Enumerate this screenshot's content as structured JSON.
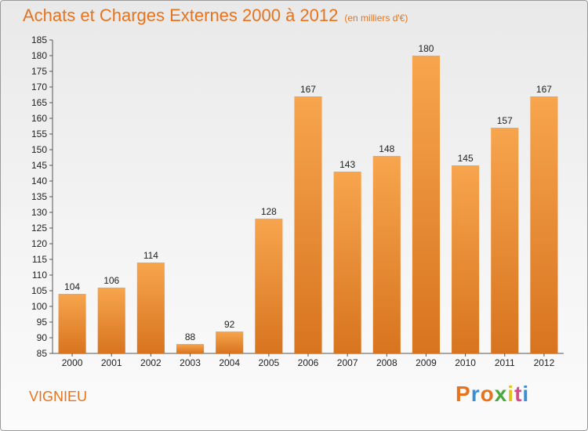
{
  "header": {
    "title": "Achats et Charges Externes 2000 à 2012",
    "subtitle": "(en milliers d'€)"
  },
  "footer": {
    "commune": "VIGNIEU",
    "brand": "Proxiti"
  },
  "colors": {
    "accent": "#e8731c",
    "bar_top": "#f7a54e",
    "bar_bottom": "#d8741f",
    "logo_letters": [
      "#e8731c",
      "#3a8ed6",
      "#e8731c",
      "#4aa83c",
      "#e4c21b",
      "#d84a8a",
      "#3a8ed6"
    ]
  },
  "chart_data": {
    "type": "bar",
    "title": "Achats et Charges Externes 2000 à 2012",
    "subtitle": "(en milliers d'€)",
    "categories": [
      "2000",
      "2001",
      "2002",
      "2003",
      "2004",
      "2005",
      "2006",
      "2007",
      "2008",
      "2009",
      "2010",
      "2011",
      "2012"
    ],
    "values": [
      104,
      106,
      114,
      88,
      92,
      128,
      167,
      143,
      148,
      180,
      145,
      157,
      167
    ],
    "ylim": [
      85,
      185
    ],
    "yticks": [
      85,
      90,
      95,
      100,
      105,
      110,
      115,
      120,
      125,
      130,
      135,
      140,
      145,
      150,
      155,
      160,
      165,
      170,
      175,
      180,
      185
    ],
    "xlabel": "",
    "ylabel": "",
    "grid": false,
    "legend": "none"
  }
}
